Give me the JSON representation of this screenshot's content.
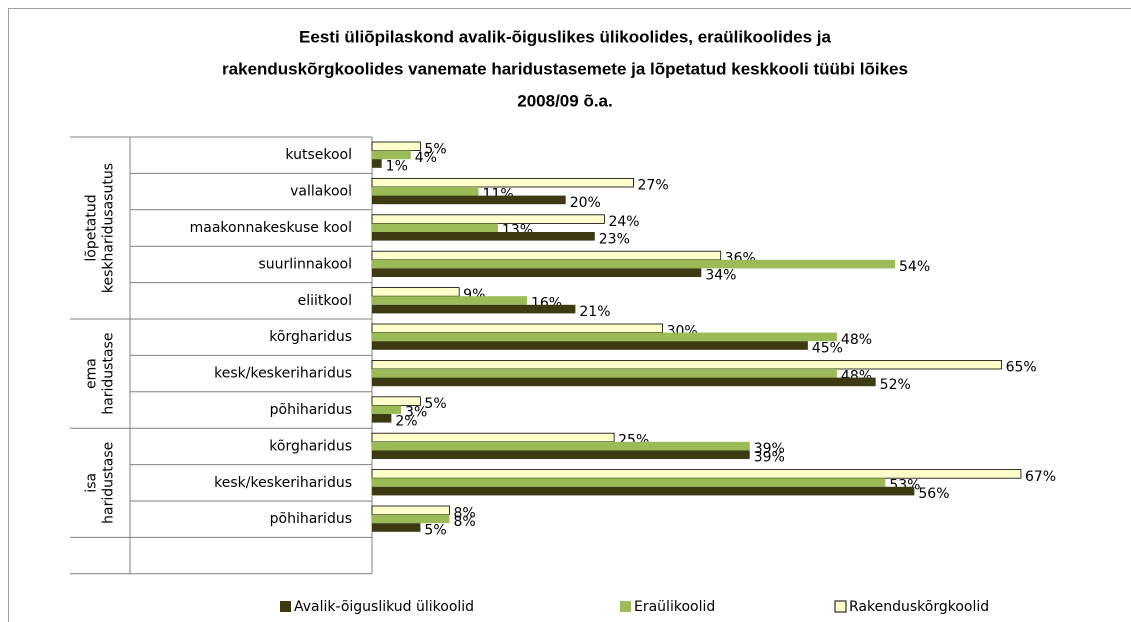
{
  "chart_data": {
    "type": "hbar",
    "title": [
      "Eesti üliõpilaskond  avalik-õiguslikes ülikoolides, eraülikoolides ja",
      "rakenduskõrgkoolides  vanemate haridustasemete ja lõpetatud keskkooli tüübi lõikes",
      "2008/09 õ.a."
    ],
    "groups": [
      {
        "label": [
          "lõpetatud",
          "keskharidusasutus"
        ],
        "size": 5
      },
      {
        "label": [
          "ema",
          "haridustase"
        ],
        "size": 3
      },
      {
        "label": [
          "isa",
          "haridustase"
        ],
        "size": 3
      }
    ],
    "categories": [
      "kutsekool",
      "vallakool",
      "maakonnakeskuse kool",
      "suurlinnakool",
      "eliitkool",
      "kõrgharidus",
      "kesk/keskeriharidus",
      "põhiharidus",
      "kõrgharidus",
      "kesk/keskeriharidus",
      "põhiharidus"
    ],
    "series": [
      {
        "name": "Avalik-õiguslikud ülikoolid",
        "color": "#3d3a12",
        "values": [
          1,
          20,
          23,
          34,
          21,
          45,
          52,
          2,
          39,
          56,
          5
        ],
        "value_labels": [
          "1%",
          "20%",
          "23%",
          "34%",
          "21%",
          "45%",
          "52%",
          "2%",
          "39%",
          "56%",
          "5%"
        ]
      },
      {
        "name": "Eraülikoolid",
        "color": "#9bbb59",
        "values": [
          4,
          11,
          13,
          54,
          16,
          48,
          48,
          3,
          39,
          53,
          8
        ],
        "value_labels": [
          "4%",
          "11%",
          "13%",
          "54%",
          "16%",
          "48%",
          "48%",
          "3%",
          "39%",
          "53%",
          "8%"
        ]
      },
      {
        "name": "Rakenduskõrgkoolid",
        "color": "#ffffcc",
        "values": [
          5,
          27,
          24,
          36,
          9,
          30,
          65,
          5,
          25,
          67,
          8
        ],
        "value_labels": [
          "5%",
          "27%",
          "24%",
          "36%",
          "9%",
          "30%",
          "65%",
          "5%",
          "25%",
          "67%",
          "8%"
        ]
      }
    ],
    "xlim": [
      0,
      70
    ]
  }
}
